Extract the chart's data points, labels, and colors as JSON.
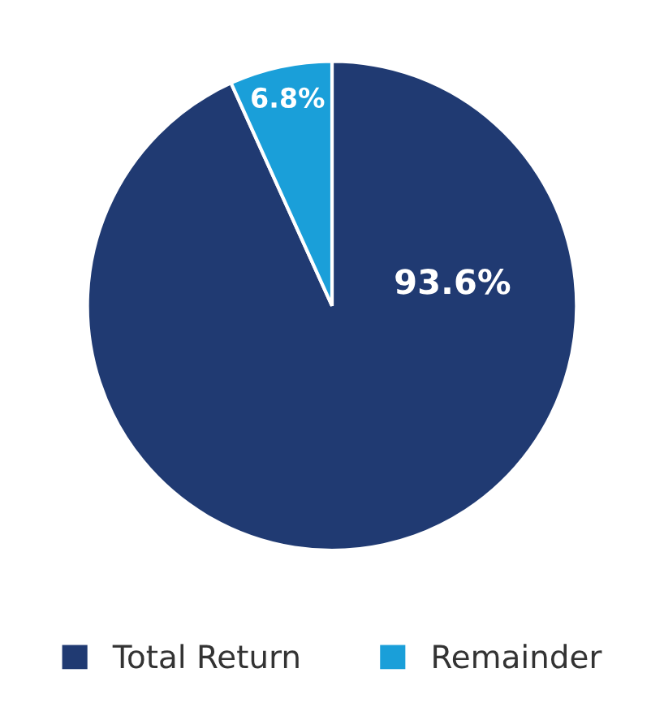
{
  "chart_data": {
    "type": "pie",
    "categories": [
      "Total Return",
      "Remainder"
    ],
    "values": [
      93.6,
      6.8
    ],
    "colors": [
      "#203a72",
      "#1a9fd9"
    ],
    "value_labels": [
      "93.6%",
      "6.8%"
    ],
    "legend": "bottom"
  }
}
